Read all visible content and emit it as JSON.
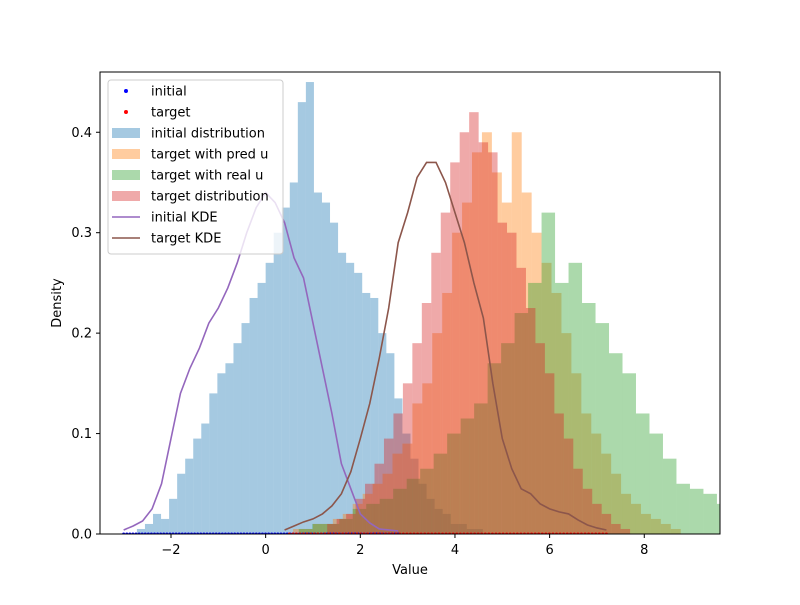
{
  "chart_data": {
    "type": "histogram",
    "xlabel": "Value",
    "ylabel": "Density",
    "xlim": [
      -3.5,
      9.6
    ],
    "ylim": [
      0,
      0.46
    ],
    "xticks": [
      {
        "value": -2,
        "label": "−2"
      },
      {
        "value": 0,
        "label": "0"
      },
      {
        "value": 2,
        "label": "2"
      },
      {
        "value": 4,
        "label": "4"
      },
      {
        "value": 6,
        "label": "6"
      },
      {
        "value": 8,
        "label": "8"
      }
    ],
    "yticks": [
      {
        "value": 0.0,
        "label": "0.0"
      },
      {
        "value": 0.1,
        "label": "0.1"
      },
      {
        "value": 0.2,
        "label": "0.2"
      },
      {
        "value": 0.3,
        "label": "0.3"
      },
      {
        "value": 0.4,
        "label": "0.4"
      }
    ],
    "legend": {
      "placement": "upper-left",
      "entries": [
        {
          "label": "initial",
          "kind": "point",
          "color": "#0000ff"
        },
        {
          "label": "target",
          "kind": "point",
          "color": "#ff0000"
        },
        {
          "label": "initial distribution",
          "kind": "patch",
          "color": "#1f77b4"
        },
        {
          "label": "target with pred u",
          "kind": "patch",
          "color": "#ff7f0e"
        },
        {
          "label": "target with real u",
          "kind": "patch",
          "color": "#2ca02c"
        },
        {
          "label": "target distribution",
          "kind": "patch",
          "color": "#d62728"
        },
        {
          "label": "initial KDE",
          "kind": "line",
          "color": "#9467bd"
        },
        {
          "label": "target KDE",
          "kind": "line",
          "color": "#8c564b"
        }
      ]
    },
    "histograms": [
      {
        "name": "initial distribution",
        "color": "#1f77b4",
        "alpha": 0.4,
        "bin_start": -2.72,
        "bin_width": 0.17,
        "values": [
          0.005,
          0.01,
          0.02,
          0.015,
          0.035,
          0.06,
          0.075,
          0.095,
          0.11,
          0.14,
          0.16,
          0.17,
          0.19,
          0.21,
          0.235,
          0.25,
          0.27,
          0.3,
          0.325,
          0.35,
          0.43,
          0.45,
          0.34,
          0.33,
          0.31,
          0.28,
          0.27,
          0.26,
          0.24,
          0.235,
          0.2,
          0.18,
          0.135,
          0.1,
          0.075,
          0.05,
          0.035,
          0.025,
          0.02,
          0.01,
          0.01,
          0.005,
          0.005
        ]
      },
      {
        "name": "target with pred u",
        "color": "#ff7f0e",
        "alpha": 0.4,
        "bin_start": 0.58,
        "bin_width": 0.21,
        "values": [
          0.005,
          0.005,
          0.01,
          0.01,
          0.015,
          0.02,
          0.03,
          0.04,
          0.05,
          0.06,
          0.08,
          0.09,
          0.13,
          0.15,
          0.2,
          0.24,
          0.3,
          0.33,
          0.38,
          0.4,
          0.36,
          0.33,
          0.4,
          0.34,
          0.3,
          0.27,
          0.24,
          0.2,
          0.16,
          0.12,
          0.1,
          0.08,
          0.06,
          0.04,
          0.03,
          0.02,
          0.015,
          0.01,
          0.005
        ]
      },
      {
        "name": "target with real u",
        "color": "#2ca02c",
        "alpha": 0.4,
        "bin_start": 0.7,
        "bin_width": 0.285,
        "values": [
          0.005,
          0.01,
          0.01,
          0.015,
          0.025,
          0.03,
          0.035,
          0.045,
          0.055,
          0.065,
          0.08,
          0.1,
          0.115,
          0.13,
          0.17,
          0.19,
          0.22,
          0.25,
          0.32,
          0.25,
          0.27,
          0.23,
          0.21,
          0.18,
          0.16,
          0.12,
          0.1,
          0.075,
          0.05,
          0.045,
          0.04,
          0.03,
          0.025,
          0.01,
          0.015,
          0.005
        ]
      },
      {
        "name": "target distribution",
        "color": "#d62728",
        "alpha": 0.4,
        "bin_start": 1.3,
        "bin_width": 0.2,
        "values": [
          0.01,
          0.015,
          0.02,
          0.035,
          0.05,
          0.07,
          0.095,
          0.12,
          0.15,
          0.19,
          0.23,
          0.28,
          0.32,
          0.37,
          0.4,
          0.42,
          0.39,
          0.38,
          0.31,
          0.3,
          0.265,
          0.225,
          0.19,
          0.16,
          0.12,
          0.095,
          0.065,
          0.045,
          0.03,
          0.02,
          0.01,
          0.005
        ]
      }
    ],
    "lines": [
      {
        "name": "initial KDE",
        "color": "#9467bd",
        "x": [
          -3.0,
          -2.8,
          -2.6,
          -2.4,
          -2.2,
          -2.0,
          -1.8,
          -1.6,
          -1.4,
          -1.2,
          -1.0,
          -0.8,
          -0.6,
          -0.4,
          -0.2,
          0.0,
          0.2,
          0.4,
          0.6,
          0.8,
          1.0,
          1.2,
          1.4,
          1.6,
          1.8,
          2.0,
          2.2,
          2.4,
          2.6,
          2.8
        ],
        "y": [
          0.004,
          0.008,
          0.013,
          0.025,
          0.05,
          0.095,
          0.14,
          0.165,
          0.185,
          0.21,
          0.225,
          0.245,
          0.27,
          0.3,
          0.325,
          0.34,
          0.33,
          0.31,
          0.275,
          0.255,
          0.21,
          0.165,
          0.12,
          0.07,
          0.045,
          0.02,
          0.011,
          0.005,
          0.004,
          0.003
        ]
      },
      {
        "name": "target KDE",
        "color": "#8c564b",
        "x": [
          0.4,
          0.6,
          0.8,
          1.0,
          1.2,
          1.4,
          1.6,
          1.8,
          2.0,
          2.2,
          2.4,
          2.6,
          2.8,
          3.0,
          3.2,
          3.4,
          3.6,
          3.8,
          4.0,
          4.2,
          4.4,
          4.6,
          4.8,
          5.0,
          5.2,
          5.4,
          5.6,
          5.8,
          6.0,
          6.2,
          6.4,
          6.6,
          6.8,
          7.0,
          7.2
        ],
        "y": [
          0.004,
          0.008,
          0.012,
          0.015,
          0.02,
          0.028,
          0.04,
          0.062,
          0.095,
          0.13,
          0.175,
          0.225,
          0.29,
          0.32,
          0.355,
          0.37,
          0.37,
          0.35,
          0.32,
          0.29,
          0.25,
          0.215,
          0.15,
          0.095,
          0.065,
          0.045,
          0.04,
          0.03,
          0.025,
          0.022,
          0.02,
          0.014,
          0.009,
          0.006,
          0.004
        ]
      }
    ],
    "rug": [
      {
        "name": "initial",
        "color": "#0000ff",
        "x_min": -3.0,
        "x_max": 2.8,
        "y": 0.0
      },
      {
        "name": "target",
        "color": "#ff0000",
        "x_min": 0.5,
        "x_max": 7.2,
        "y": 0.0
      }
    ]
  }
}
